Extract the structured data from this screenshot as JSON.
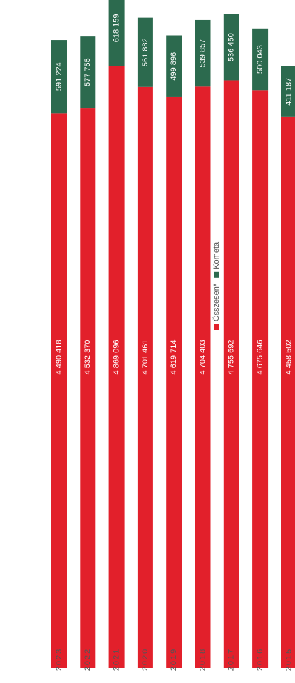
{
  "chart_data": {
    "type": "stacked_bar",
    "categories": [
      "2023",
      "2022",
      "2021",
      "2020",
      "2019",
      "2018",
      "2017",
      "2016",
      "2015"
    ],
    "series": [
      {
        "name": "Összesen*",
        "color": "#e2202b",
        "values": [
          4490418,
          4532370,
          4869096,
          4701461,
          4619714,
          4704403,
          4755692,
          4675646,
          4458502
        ],
        "value_labels": [
          "4 490 418",
          "4 532 370",
          "4 869 096",
          "4 701 461",
          "4 619 714",
          "4 704 403",
          "4 755 692",
          "4 675 646",
          "4 458 502"
        ]
      },
      {
        "name": "Kometa",
        "color": "#2c6a4e",
        "values": [
          591224,
          577755,
          618159,
          561882,
          499896,
          539857,
          536450,
          500043,
          411187
        ],
        "value_labels": [
          "591 224",
          "577 755",
          "618 159",
          "561 882",
          "499 896",
          "539 857",
          "536 450",
          "500 043",
          "411 187"
        ]
      }
    ],
    "ylim": [
      0,
      5400000
    ]
  }
}
